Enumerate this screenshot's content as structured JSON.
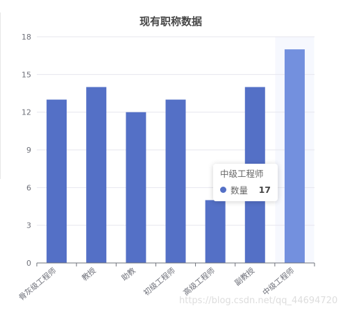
{
  "chart_data": {
    "type": "bar",
    "title": "现有职称数据",
    "categories": [
      "骨灰级工程师",
      "教授",
      "助教",
      "初级工程师",
      "高级工程师",
      "副教授",
      "中级工程师"
    ],
    "series": [
      {
        "name": "数量",
        "values": [
          13,
          14,
          12,
          13,
          5,
          14,
          17
        ]
      }
    ],
    "ylim": [
      0,
      18
    ],
    "yticks": [
      0,
      3,
      6,
      9,
      12,
      15,
      18
    ],
    "grid": true,
    "colors": {
      "bar": "#5470c6",
      "bar_highlight": "#7390de",
      "highlight_band": "#f6f8fe",
      "grid": "#e6e6ee",
      "axis": "#6e7079"
    },
    "highlighted_index": 6
  },
  "tooltip": {
    "title": "中级工程师",
    "series_name": "数量",
    "value": "17",
    "dot_color": "#5470c6"
  },
  "watermark": "https://blog.csdn.net/qq_44694720"
}
